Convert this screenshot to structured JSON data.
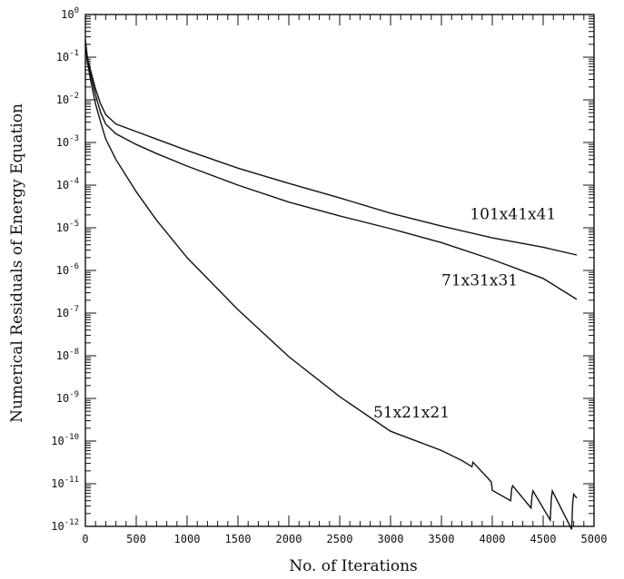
{
  "chart_data": {
    "type": "line",
    "xlabel": "No. of Iterations",
    "ylabel": "Numerical Residuals of Energy Equation",
    "xlim": [
      0,
      5000
    ],
    "ylim_exponents": [
      -12,
      0
    ],
    "y_scale": "log",
    "grid": false,
    "x_ticks": [
      "0",
      "500",
      "1000",
      "1500",
      "2000",
      "2500",
      "3000",
      "3500",
      "4000",
      "4500",
      "5000"
    ],
    "y_ticks": [
      {
        "base": "10",
        "exp": "0"
      },
      {
        "base": "10",
        "exp": "-1"
      },
      {
        "base": "10",
        "exp": "-2"
      },
      {
        "base": "10",
        "exp": "-3"
      },
      {
        "base": "10",
        "exp": "-4"
      },
      {
        "base": "10",
        "exp": "-5"
      },
      {
        "base": "10",
        "exp": "-6"
      },
      {
        "base": "10",
        "exp": "-7"
      },
      {
        "base": "10",
        "exp": "-8"
      },
      {
        "base": "10",
        "exp": "-9"
      },
      {
        "base": "10",
        "exp": "-10"
      },
      {
        "base": "10",
        "exp": "-11"
      },
      {
        "base": "10",
        "exp": "-12"
      }
    ],
    "series": [
      {
        "name": "101x41x41",
        "x": [
          0,
          20,
          50,
          100,
          150,
          200,
          300,
          500,
          700,
          1000,
          1500,
          2000,
          2500,
          3000,
          3500,
          4000,
          4500,
          4830
        ],
        "y": [
          0.25,
          0.1,
          0.05,
          0.018,
          0.008,
          0.0045,
          0.0027,
          0.0018,
          0.0012,
          0.00065,
          0.00025,
          0.00011,
          5e-05,
          2.2e-05,
          1.1e-05,
          5.8e-06,
          3.5e-06,
          2.3e-06
        ]
      },
      {
        "name": "71x31x31",
        "x": [
          0,
          20,
          50,
          100,
          150,
          200,
          300,
          500,
          700,
          1000,
          1500,
          2000,
          2500,
          3000,
          3500,
          4000,
          4500,
          4830
        ],
        "y": [
          0.22,
          0.09,
          0.04,
          0.013,
          0.005,
          0.0027,
          0.0016,
          0.0009,
          0.00055,
          0.00028,
          0.0001,
          4e-05,
          1.9e-05,
          9.5e-06,
          4.5e-06,
          1.8e-06,
          6.5e-07,
          2.1e-07
        ]
      },
      {
        "name": "51x21x21",
        "x": [
          0,
          20,
          50,
          100,
          150,
          200,
          300,
          500,
          700,
          1000,
          1500,
          2000,
          2500,
          3000,
          3500,
          3700,
          3800,
          3810,
          3950,
          3990,
          4000,
          4180,
          4190,
          4200,
          4380,
          4390,
          4400,
          4570,
          4580,
          4590,
          4780,
          4790,
          4800,
          4830
        ],
        "y": [
          0.2,
          0.08,
          0.03,
          0.008,
          0.003,
          0.0012,
          0.0004,
          7e-05,
          1.5e-05,
          2e-06,
          1.2e-07,
          9.5e-09,
          1.1e-09,
          1.7e-10,
          6e-11,
          3.5e-11,
          2.5e-11,
          3.2e-11,
          1.4e-11,
          1.1e-11,
          7e-12,
          4e-12,
          7.5e-12,
          9e-12,
          2.7e-12,
          5e-12,
          6.8e-12,
          1.4e-12,
          4.5e-12,
          6.8e-12,
          8.5e-13,
          3.5e-12,
          5.7e-12,
          4.6e-12
        ]
      }
    ]
  }
}
